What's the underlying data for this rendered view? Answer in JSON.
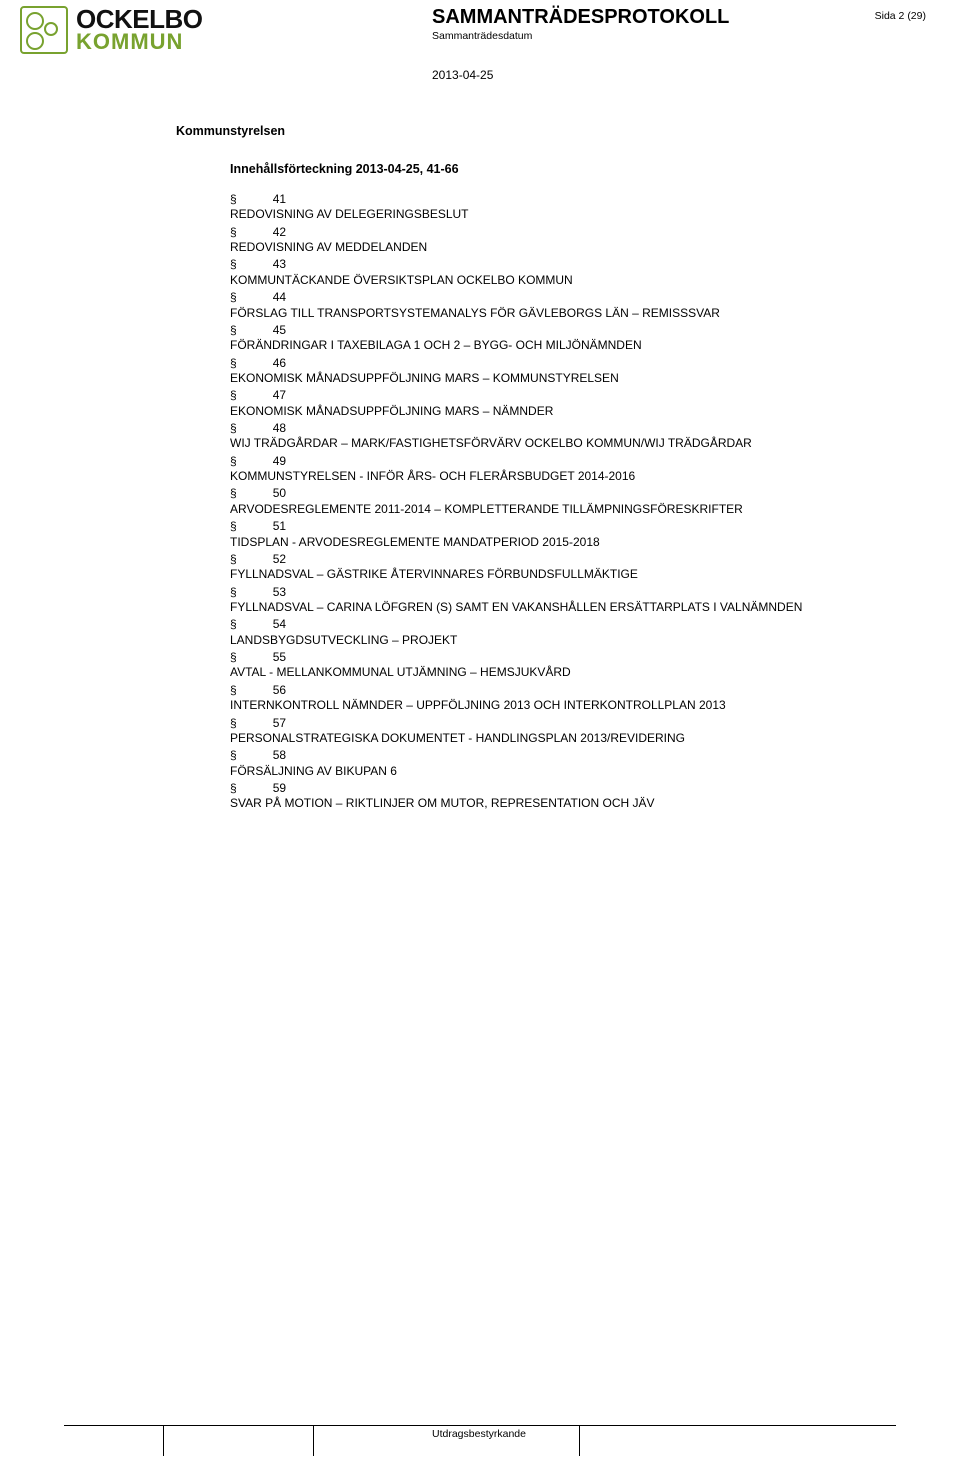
{
  "logo": {
    "line1": "OCKELBO",
    "line2": "KOMMUN"
  },
  "header": {
    "title": "SAMMANTRÄDESPROTOKOLL",
    "subtitle": "Sammanträdesdatum",
    "page": "Sida 2 (29)",
    "date": "2013-04-25"
  },
  "section": "Kommunstyrelsen",
  "toc_title": "Innehållsförteckning 2013-04-25, 41-66",
  "items": [
    {
      "para": "§",
      "num": "41",
      "text": "REDOVISNING AV DELEGERINGSBESLUT"
    },
    {
      "para": "§",
      "num": "42",
      "text": "REDOVISNING AV MEDDELANDEN"
    },
    {
      "para": "§",
      "num": "43",
      "text": "KOMMUNTÄCKANDE ÖVERSIKTSPLAN OCKELBO KOMMUN"
    },
    {
      "para": "§",
      "num": "44",
      "text": "FÖRSLAG TILL TRANSPORTSYSTEMANALYS FÖR GÄVLEBORGS LÄN – REMISSSVAR"
    },
    {
      "para": "§",
      "num": "45",
      "text": "FÖRÄNDRINGAR I TAXEBILAGA 1 OCH 2 – BYGG- OCH MILJÖNÄMNDEN"
    },
    {
      "para": "§",
      "num": "46",
      "text": "EKONOMISK MÅNADSUPPFÖLJNING MARS – KOMMUNSTYRELSEN"
    },
    {
      "para": "§",
      "num": "47",
      "text": "EKONOMISK MÅNADSUPPFÖLJNING MARS – NÄMNDER"
    },
    {
      "para": "§",
      "num": "48",
      "text": "WIJ TRÄDGÅRDAR – MARK/FASTIGHETSFÖRVÄRV OCKELBO KOMMUN/WIJ TRÄDGÅRDAR"
    },
    {
      "para": "§",
      "num": "49",
      "text": "KOMMUNSTYRELSEN  - INFÖR ÅRS- OCH FLERÅRSBUDGET 2014-2016"
    },
    {
      "para": "§",
      "num": "50",
      "text": "ARVODESREGLEMENTE 2011-2014 – KOMPLETTERANDE TILLÄMPNINGSFÖRESKRIFTER"
    },
    {
      "para": "§",
      "num": "51",
      "text": "TIDSPLAN - ARVODESREGLEMENTE MANDATPERIOD 2015-2018"
    },
    {
      "para": "§",
      "num": "52",
      "text": "FYLLNADSVAL – GÄSTRIKE ÅTERVINNARES FÖRBUNDSFULLMÄKTIGE"
    },
    {
      "para": "§",
      "num": "53",
      "text": "FYLLNADSVAL – CARINA LÖFGREN (S) SAMT EN VAKANSHÅLLEN ERSÄTTARPLATS I VALNÄMNDEN"
    },
    {
      "para": "§",
      "num": "54",
      "text": "LANDSBYGDSUTVECKLING – PROJEKT"
    },
    {
      "para": "§",
      "num": "55",
      "text": "AVTAL - MELLANKOMMUNAL UTJÄMNING – HEMSJUKVÅRD"
    },
    {
      "para": "§",
      "num": "56",
      "text": "INTERNKONTROLL NÄMNDER – UPPFÖLJNING 2013 OCH INTERKONTROLLPLAN 2013"
    },
    {
      "para": "§",
      "num": "57",
      "text": "PERSONALSTRATEGISKA DOKUMENTET - HANDLINGSPLAN 2013/REVIDERING"
    },
    {
      "para": "§",
      "num": "58",
      "text": "FÖRSÄLJNING AV BIKUPAN 6"
    },
    {
      "para": "§",
      "num": "59",
      "text": "SVAR PÅ MOTION – RIKTLINJER OM MUTOR, REPRESENTATION OCH JÄV"
    }
  ],
  "footer": {
    "label": "Utdragsbestyrkande",
    "cell_widths_pct": [
      12,
      18,
      32,
      38
    ]
  },
  "colors": {
    "text": "#000000",
    "accent_green": "#78a22f",
    "background": "#ffffff"
  },
  "fonts": {
    "body_pt": 12,
    "header_title_pt": 20,
    "small_pt": 10.5
  }
}
